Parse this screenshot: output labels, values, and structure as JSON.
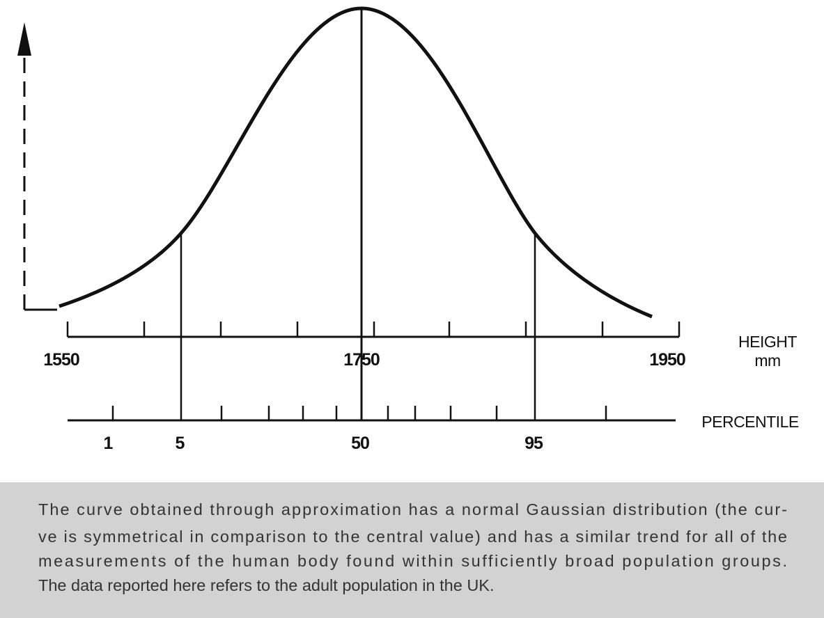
{
  "height_axis": {
    "labels": [
      "1550",
      "1750",
      "1950"
    ],
    "title": "HEIGHT",
    "unit": "mm"
  },
  "percentile_axis": {
    "labels": [
      "1",
      "5",
      "50",
      "95"
    ],
    "title": "PERCENTILE"
  },
  "caption": {
    "lines": [
      "The curve obtained through approximation has a normal Gaussian distribution (the cur-",
      "ve is symmetrical in comparison to the central value) and has a similar trend for all of the",
      "measurements of the human body found within sufficiently broad population groups.",
      "The data reported here refers to the adult population in the UK."
    ]
  }
}
